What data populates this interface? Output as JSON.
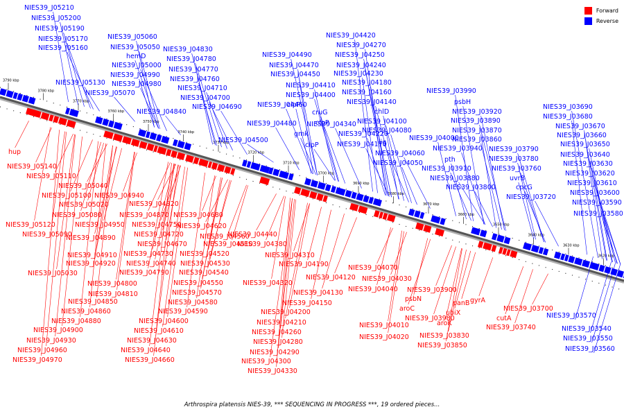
{
  "legend": {
    "forward_label": "Forward",
    "reverse_label": "Reverse",
    "forward_color": "#ff0000",
    "reverse_color": "#0000ff"
  },
  "caption": "Arthrospira platensis NIES-39, *** SEQUENCING IN PROGRESS ***, 19 ordered pieces...",
  "scale_ticks": [
    "3790 kbp",
    "3780 kbp",
    "3770 kbp",
    "3760 kbp",
    "3750 kbp",
    "3740 kbp",
    "3730 kbp",
    "3720 kbp",
    "3710 kbp",
    "3700 kbp",
    "3690 kbp",
    "3680 kbp",
    "3670 kbp",
    "3660 kbp",
    "3650 kbp",
    "3640 kbp",
    "3630 kbp",
    "3620 kbp"
  ],
  "reverse_genes": [
    "NIES39_J05210",
    "NIES39_J05200",
    "NIES39_J05190",
    "NIES39_J05170",
    "NIES39_J05160",
    "NIES39_J05130",
    "NIES39_J05060",
    "NIES39_J05050",
    "hemD",
    "NIES39_J05000",
    "NIES39_J04990",
    "NIES39_J04980",
    "NIES39_J05070",
    "NIES39_J04830",
    "NIES39_J04780",
    "NIES39_J04770",
    "NIES39_J04760",
    "NIES39_J04710",
    "NIES39_J04700",
    "NIES39_J04690",
    "NIES39_J04840",
    "NIES39_J04420",
    "NIES39_J04270",
    "NIES39_J04250",
    "NIES39_J04240",
    "NIES39_J04230",
    "NIES39_J04180",
    "NIES39_J04160",
    "NIES39_J04140",
    "NIES39_J04490",
    "NIES39_J04470",
    "NIES39_J04450",
    "NIES39_J04410",
    "NIES39_J04400",
    "NIES39_J04460",
    "clpP",
    "cruG",
    "clpP",
    "NIES39_J04480",
    "NIES39_J04340",
    "gmk",
    "NIES39_J04220",
    "clpP",
    "NIES39_J04170",
    "NIES39_J04500",
    "chlD",
    "NIES39_J04100",
    "NIES39_J04080",
    "lig",
    "NIES39_J04060",
    "NIES39_J04050",
    "NIES39_J03990",
    "psbH",
    "NIES39_J03920",
    "NIES39_J03890",
    "NIES39_J03870",
    "NIES39_J04000",
    "NIES39_J03860",
    "NIES39_J03940",
    "NIES39_J03790",
    "pth",
    "NIES39_J03780",
    "NIES39_J03910",
    "NIES39_J03760",
    "NIES39_J03880",
    "uvrB",
    "NIES39_J03800",
    "cpcG",
    "NIES39_J03720",
    "NIES39_J03690",
    "NIES39_J03680",
    "NIES39_J03670",
    "NIES39_J03660",
    "NIES39_J03650",
    "NIES39_J03640",
    "NIES39_J03630",
    "NIES39_J03620",
    "NIES39_J03610",
    "NIES39_J03600",
    "NIES39_J03590",
    "NIES39_J03580",
    "NIES39_J03570",
    "NIES39_J03540",
    "NIES39_J03550",
    "NIES39_J03560"
  ],
  "forward_genes": [
    "hup",
    "NIES39_J05140",
    "NIES39_J05110",
    "NIES39_J05040",
    "NIES39_J05100",
    "NIES39_J04940",
    "NIES39_J05020",
    "NIES39_J04820",
    "NIES39_J05080",
    "NIES39_J04870",
    "NIES39_J04680",
    "NIES39_J05120",
    "NIES39_J04950",
    "NIES39_J04750",
    "NIES39_J04620",
    "NIES39_J05090",
    "NIES39_J04720",
    "NIES39_J04560",
    "NIES39_J04440",
    "NIES39_J04890",
    "NIES39_J04670",
    "NIES39_J04510",
    "NIES39_J04380",
    "NIES39_J04910",
    "NIES39_J04730",
    "NIES39_J04520",
    "NIES39_J04310",
    "NIES39_J04920",
    "NIES39_J04740",
    "NIES39_J04530",
    "NIES39_J04190",
    "NIES39_J04070",
    "NIES39_J05030",
    "NIES39_J04790",
    "NIES39_J04540",
    "NIES39_J04320",
    "NIES39_J04030",
    "NIES39_J04800",
    "NIES39_J04550",
    "NIES39_J04120",
    "NIES39_J04040",
    "NIES39_J03900",
    "NIES39_J04810",
    "NIES39_J04570",
    "NIES39_J04130",
    "psbN",
    "NIES39_J04850",
    "NIES39_J04580",
    "NIES39_J04150",
    "aroC",
    "gyrA",
    "NIES39_J04860",
    "NIES39_J04590",
    "NIES39_J04200",
    "NIES39_J03980",
    "panB",
    "NIES39_J03700",
    "NIES39_J04880",
    "NIES39_J04600",
    "NIES39_J04210",
    "NIES39_J04010",
    "ubiX",
    "cutA",
    "NIES39_J04900",
    "NIES39_J04610",
    "NIES39_J04260",
    "aroK",
    "NIES39_J03740",
    "NIES39_J04930",
    "NIES39_J04630",
    "NIES39_J04280",
    "NIES39_J04020",
    "NIES39_J03830",
    "NIES39_J04960",
    "NIES39_J04640",
    "NIES39_J04290",
    "NIES39_J03850",
    "NIES39_J04970",
    "NIES39_J04660",
    "NIES39_J04300",
    "NIES39_J04330"
  ]
}
